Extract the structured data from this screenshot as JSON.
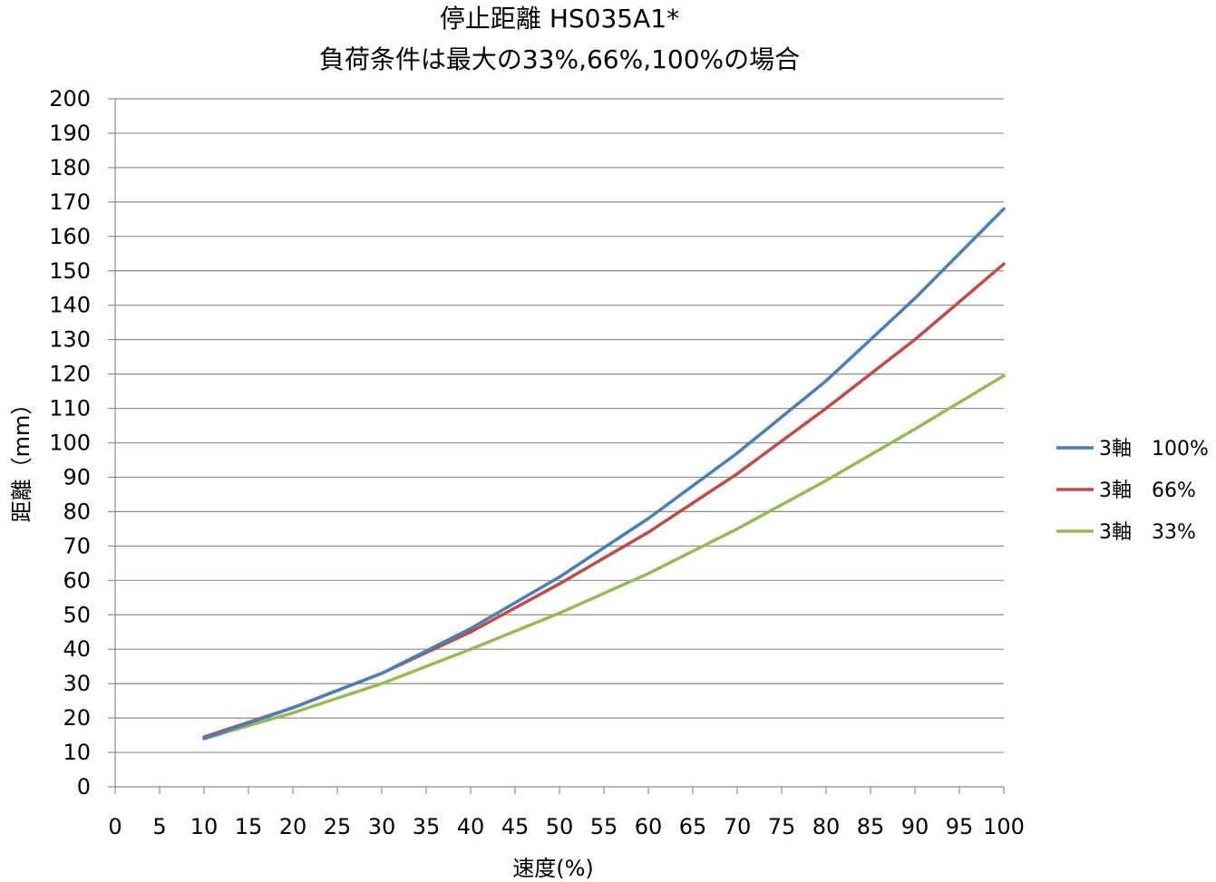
{
  "chart_data": {
    "type": "line",
    "title": "停止距離 HS035A1*",
    "subtitle": "負荷条件は最大の33%,66%,100%の場合",
    "xlabel": "速度(%)",
    "ylabel": "距離（mm）",
    "x": [
      10,
      20,
      30,
      40,
      50,
      60,
      70,
      80,
      90,
      100
    ],
    "xticks": [
      "0",
      "5",
      "10",
      "15",
      "20",
      "25",
      "30",
      "35",
      "40",
      "45",
      "50",
      "55",
      "60",
      "65",
      "70",
      "75",
      "80",
      "85",
      "90",
      "95",
      "100"
    ],
    "yticks": [
      "0",
      "10",
      "20",
      "30",
      "40",
      "50",
      "60",
      "70",
      "80",
      "90",
      "100",
      "110",
      "120",
      "130",
      "140",
      "150",
      "160",
      "170",
      "180",
      "190",
      "200"
    ],
    "xlim": [
      0,
      100
    ],
    "ylim": [
      0,
      200
    ],
    "grid": true,
    "legend_position": "right",
    "series": [
      {
        "name": "3軸　100%",
        "color": "#4A7EBB",
        "values": [
          14,
          23,
          33,
          46,
          61,
          78,
          97,
          118,
          142,
          168
        ]
      },
      {
        "name": "3軸　66%",
        "color": "#BE4B48",
        "values": [
          14.5,
          23,
          33,
          45,
          59,
          74,
          91,
          110,
          130,
          152
        ]
      },
      {
        "name": "3軸　33%",
        "color": "#98B954",
        "values": [
          14,
          21.5,
          30,
          40,
          50.5,
          62,
          75,
          89,
          104,
          119.5
        ]
      }
    ]
  }
}
